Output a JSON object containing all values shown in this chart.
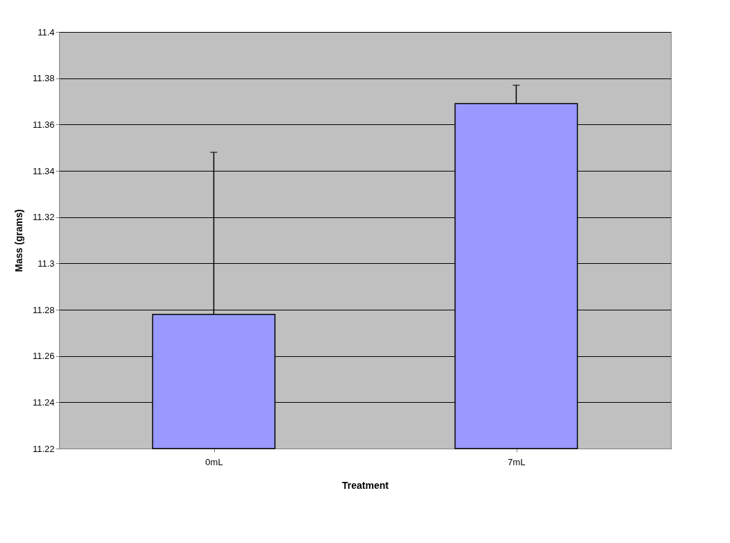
{
  "chart_data": {
    "type": "bar",
    "xlabel": "Treatment",
    "ylabel": "Mass (grams)",
    "categories": [
      "0mL",
      "7mL"
    ],
    "values": [
      11.278,
      11.369
    ],
    "errors": [
      [
        11.278,
        11.348
      ],
      [
        11.369,
        11.377
      ]
    ],
    "color": "#9999ff",
    "ylim": [
      11.22,
      11.4
    ],
    "yticks": [
      11.22,
      11.24,
      11.26,
      11.28,
      11.3,
      11.32,
      11.34,
      11.36,
      11.38,
      11.4
    ],
    "grid": "y"
  }
}
